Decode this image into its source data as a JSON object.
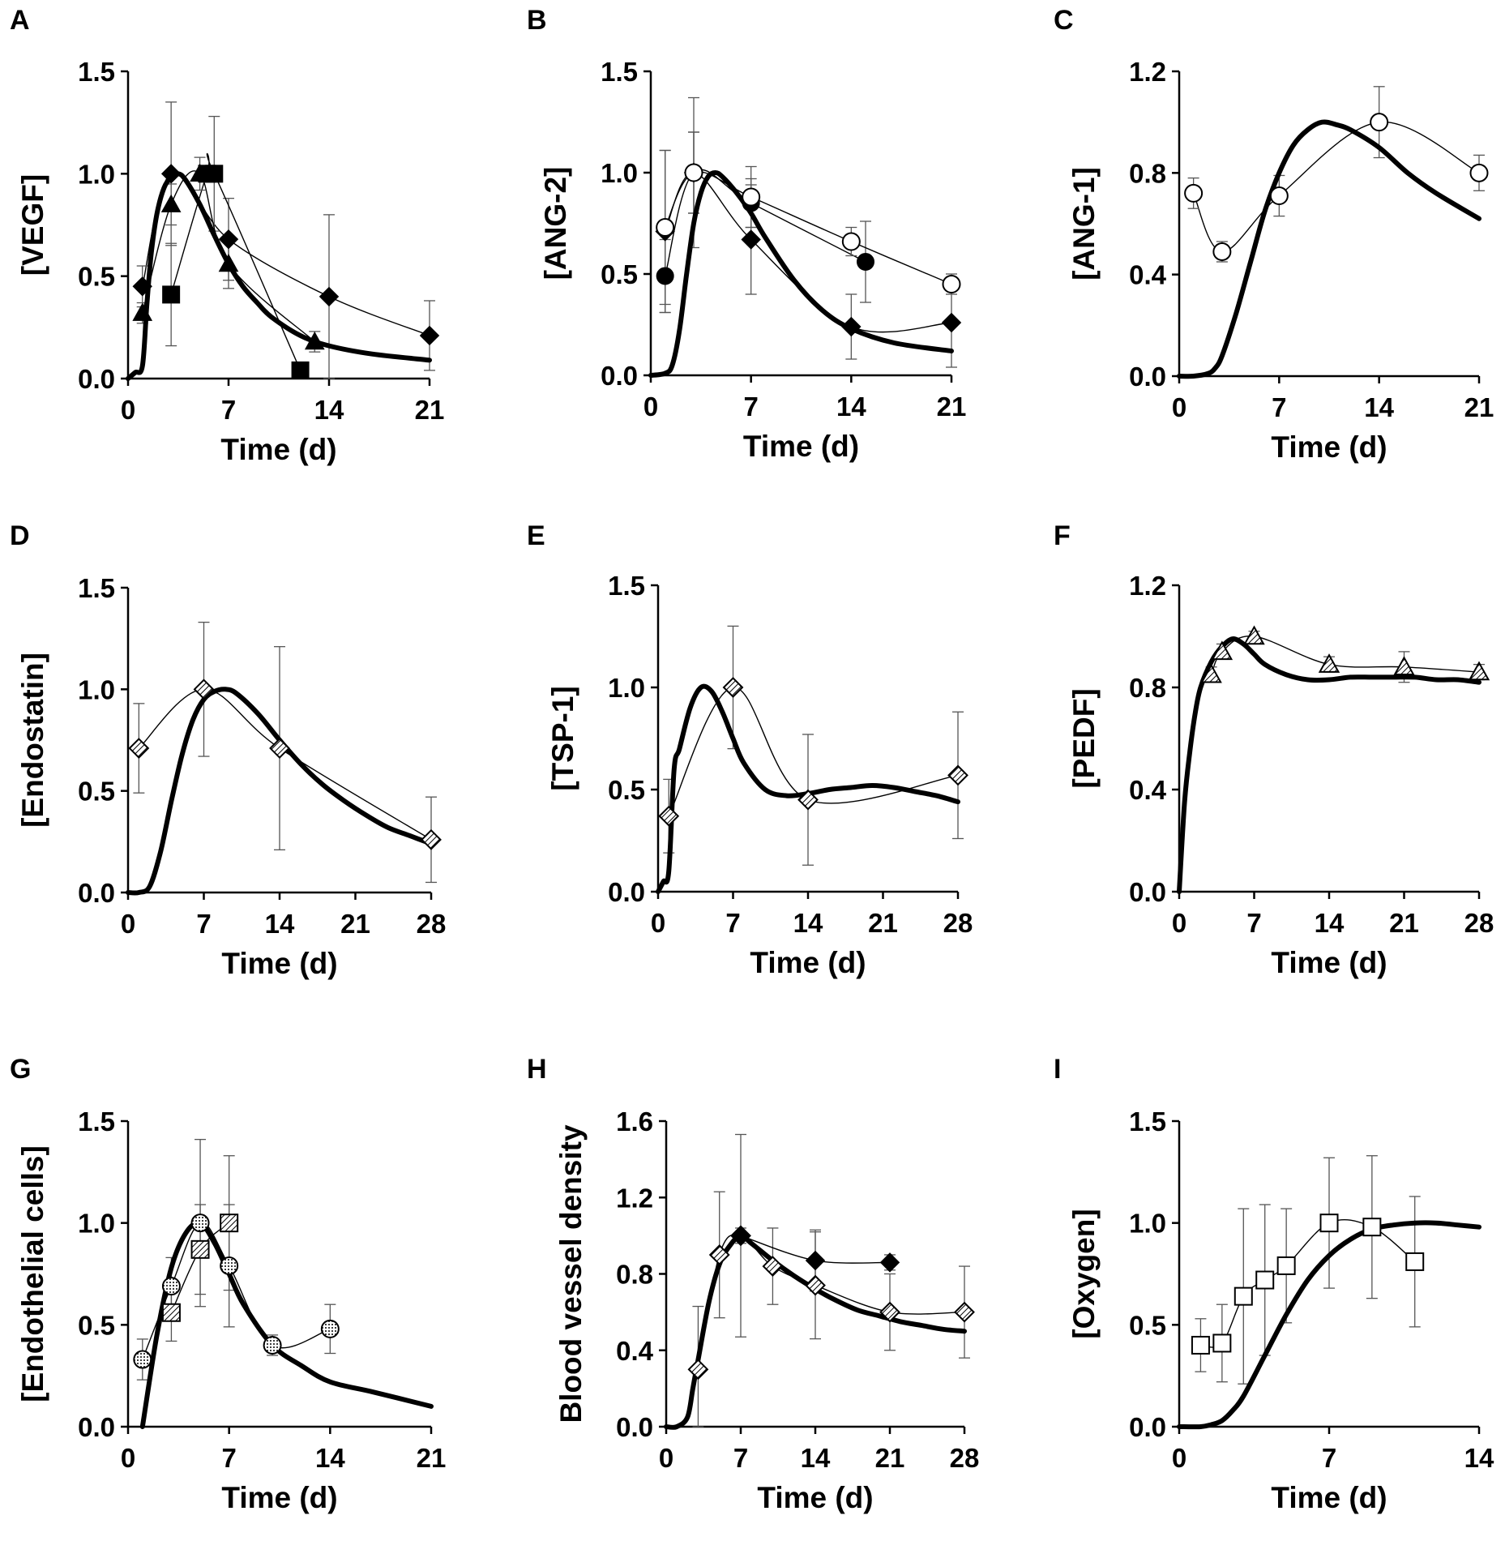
{
  "figure": {
    "panels_layout": "3x3 grid",
    "colors": {
      "ink": "#000000",
      "error_bar": "#555555",
      "background": "#ffffff"
    }
  },
  "chart_data": [
    {
      "id": "A",
      "type": "line",
      "letter": "A",
      "xlabel": "Time (d)",
      "ylabel": "[VEGF]",
      "xlim": [
        0,
        21
      ],
      "ylim": [
        0,
        1.5
      ],
      "xticks": [
        0,
        7,
        14,
        21
      ],
      "yticks": [
        "0.0",
        "0.5",
        "1.0",
        "1.5"
      ],
      "model": {
        "name": "model",
        "x": [
          0,
          0.5,
          1,
          1.3,
          1.6,
          2,
          2.5,
          3,
          3.5,
          4,
          5,
          6,
          7,
          8,
          9,
          10,
          12,
          14,
          17,
          21
        ],
        "y": [
          0,
          0.03,
          0.06,
          0.35,
          0.6,
          0.8,
          0.93,
          0.98,
          1.0,
          0.97,
          0.85,
          0.7,
          0.56,
          0.45,
          0.37,
          0.3,
          0.21,
          0.16,
          0.12,
          0.09
        ]
      },
      "series": [
        {
          "name": "diamond",
          "marker": "diamond",
          "fill": "black",
          "x": [
            1,
            3,
            7,
            14,
            21
          ],
          "y": [
            0.45,
            1.0,
            0.68,
            0.4,
            0.21
          ],
          "err": [
            0.1,
            0.35,
            0.2,
            0.4,
            0.17
          ]
        },
        {
          "name": "square",
          "marker": "square",
          "fill": "black",
          "x": [
            3,
            5.5,
            6,
            12
          ],
          "y": [
            0.41,
            1.0,
            1.0,
            0.04
          ],
          "err": [
            0.25,
            0.0,
            0.28,
            0.0
          ]
        },
        {
          "name": "triangle",
          "marker": "triangle",
          "fill": "black",
          "x": [
            1,
            3,
            5,
            7,
            13
          ],
          "y": [
            0.32,
            0.85,
            1.0,
            0.56,
            0.18
          ],
          "err": [
            0.05,
            0.1,
            0.08,
            0.12,
            0.05
          ]
        }
      ]
    },
    {
      "id": "B",
      "type": "line",
      "letter": "B",
      "xlabel": "Time (d)",
      "ylabel": "[ANG-2]",
      "xlim": [
        0,
        21
      ],
      "ylim": [
        0,
        1.5
      ],
      "xticks": [
        0,
        7,
        14,
        21
      ],
      "yticks": [
        "0.0",
        "0.5",
        "1.0",
        "1.5"
      ],
      "model": {
        "name": "model",
        "x": [
          0,
          1,
          1.5,
          2,
          2.5,
          3,
          3.5,
          4,
          4.5,
          5,
          6,
          7,
          8,
          10,
          12,
          14,
          17,
          21
        ],
        "y": [
          0,
          0.01,
          0.05,
          0.22,
          0.5,
          0.75,
          0.9,
          0.98,
          1.0,
          0.98,
          0.9,
          0.8,
          0.68,
          0.47,
          0.32,
          0.23,
          0.16,
          0.12
        ]
      },
      "series": [
        {
          "name": "filled-diamond",
          "marker": "diamond",
          "fill": "black",
          "x": [
            1,
            3,
            7,
            14,
            21
          ],
          "y": [
            0.71,
            1.0,
            0.67,
            0.24,
            0.26
          ],
          "err": [
            0.4,
            0.2,
            0.27,
            0.16,
            0.22
          ]
        },
        {
          "name": "filled-circle",
          "marker": "circle",
          "fill": "black",
          "x": [
            1,
            3,
            7,
            15
          ],
          "y": [
            0.49,
            1.0,
            0.85,
            0.56
          ],
          "err": [
            0.18,
            0.2,
            0.12,
            0.2
          ]
        },
        {
          "name": "open-circle",
          "marker": "circle",
          "fill": "white",
          "x": [
            1,
            3,
            7,
            14,
            21
          ],
          "y": [
            0.73,
            1.0,
            0.88,
            0.66,
            0.45
          ],
          "err": [
            0.38,
            0.37,
            0.15,
            0.07,
            0.05
          ]
        }
      ]
    },
    {
      "id": "C",
      "type": "line",
      "letter": "C",
      "xlabel": "Time (d)",
      "ylabel": "[ANG-1]",
      "xlim": [
        0,
        21
      ],
      "ylim": [
        0,
        1.2
      ],
      "xticks": [
        0,
        7,
        14,
        21
      ],
      "yticks": [
        "0.0",
        "0.4",
        "0.8",
        "1.2"
      ],
      "model": {
        "name": "model",
        "x": [
          0,
          1,
          2,
          2.5,
          3,
          4,
          5,
          6,
          7,
          8,
          9,
          10,
          11,
          12,
          14,
          16,
          18,
          21
        ],
        "y": [
          0,
          0.0,
          0.01,
          0.03,
          0.08,
          0.25,
          0.45,
          0.65,
          0.8,
          0.91,
          0.97,
          1.0,
          0.99,
          0.97,
          0.9,
          0.8,
          0.72,
          0.62
        ]
      },
      "series": [
        {
          "name": "open-circle",
          "marker": "circle",
          "fill": "white",
          "x": [
            1,
            3,
            7,
            14,
            21
          ],
          "y": [
            0.72,
            0.49,
            0.71,
            1.0,
            0.8
          ],
          "err": [
            0.06,
            0.04,
            0.08,
            0.14,
            0.07
          ]
        }
      ]
    },
    {
      "id": "D",
      "type": "line",
      "letter": "D",
      "xlabel": "Time (d)",
      "ylabel": "[Endostatin]",
      "xlim": [
        0,
        28
      ],
      "ylim": [
        0,
        1.5
      ],
      "xticks": [
        0,
        7,
        14,
        21,
        28
      ],
      "yticks": [
        "0.0",
        "0.5",
        "1.0",
        "1.5"
      ],
      "model": {
        "name": "model",
        "x": [
          0,
          1,
          2,
          3,
          4,
          5,
          6,
          7,
          8,
          9,
          10,
          12,
          14,
          16,
          18,
          20,
          22,
          24,
          26,
          28
        ],
        "y": [
          0,
          0.0,
          0.03,
          0.2,
          0.45,
          0.68,
          0.85,
          0.95,
          0.99,
          1.0,
          0.98,
          0.88,
          0.75,
          0.63,
          0.53,
          0.45,
          0.38,
          0.32,
          0.28,
          0.24
        ]
      },
      "series": [
        {
          "name": "hatched-diamond",
          "marker": "diamond",
          "fill": "hatch",
          "x": [
            1,
            7,
            14,
            28
          ],
          "y": [
            0.71,
            1.0,
            0.71,
            0.26
          ],
          "err": [
            0.22,
            0.33,
            0.5,
            0.21
          ]
        }
      ]
    },
    {
      "id": "E",
      "type": "line",
      "letter": "E",
      "xlabel": "Time (d)",
      "ylabel": "[TSP-1]",
      "xlim": [
        0,
        28
      ],
      "ylim": [
        0,
        1.5
      ],
      "xticks": [
        0,
        7,
        14,
        21,
        28
      ],
      "yticks": [
        "0.0",
        "0.5",
        "1.0",
        "1.5"
      ],
      "model": {
        "name": "model",
        "x": [
          0,
          0.5,
          1,
          1.5,
          2,
          3,
          4,
          5,
          6,
          7,
          8,
          10,
          12,
          14,
          16,
          18,
          20,
          22,
          24,
          26,
          28
        ],
        "y": [
          0,
          0.05,
          0.1,
          0.6,
          0.7,
          0.9,
          1.0,
          0.98,
          0.88,
          0.75,
          0.63,
          0.5,
          0.47,
          0.48,
          0.5,
          0.51,
          0.52,
          0.51,
          0.49,
          0.47,
          0.44
        ]
      },
      "series": [
        {
          "name": "hatched-diamond",
          "marker": "diamond",
          "fill": "hatch",
          "x": [
            1,
            7,
            14,
            28
          ],
          "y": [
            0.37,
            1.0,
            0.45,
            0.57
          ],
          "err": [
            0.18,
            0.3,
            0.32,
            0.31
          ]
        }
      ]
    },
    {
      "id": "F",
      "type": "line",
      "letter": "F",
      "xlabel": "Time (d)",
      "ylabel": "[PEDF]",
      "xlim": [
        0,
        28
      ],
      "ylim": [
        0,
        1.2
      ],
      "xticks": [
        0,
        7,
        14,
        21,
        28
      ],
      "yticks": [
        "0.0",
        "0.4",
        "0.8",
        "1.2"
      ],
      "model": {
        "name": "model",
        "x": [
          0,
          0.5,
          1,
          1.5,
          2,
          3,
          4,
          5,
          6,
          7,
          8,
          10,
          12,
          14,
          16,
          18,
          20,
          22,
          24,
          26,
          28
        ],
        "y": [
          0,
          0.35,
          0.55,
          0.7,
          0.8,
          0.9,
          0.96,
          0.99,
          0.97,
          0.93,
          0.89,
          0.85,
          0.83,
          0.83,
          0.84,
          0.84,
          0.84,
          0.84,
          0.83,
          0.83,
          0.82
        ]
      },
      "series": [
        {
          "name": "hatched-triangle",
          "marker": "triangle",
          "fill": "hatch",
          "x": [
            3,
            4,
            7,
            14,
            21,
            28
          ],
          "y": [
            0.85,
            0.94,
            1.0,
            0.89,
            0.88,
            0.86
          ],
          "err": [
            0.03,
            0.03,
            0.02,
            0.03,
            0.06,
            0.03
          ]
        }
      ]
    },
    {
      "id": "G",
      "type": "line",
      "letter": "G",
      "xlabel": "Time (d)",
      "ylabel": "[Endothelial cells]",
      "xlim": [
        0,
        21
      ],
      "ylim": [
        0,
        1.5
      ],
      "xticks": [
        0,
        7,
        14,
        21
      ],
      "yticks": [
        "0.0",
        "0.5",
        "1.0",
        "1.5"
      ],
      "model": {
        "name": "model",
        "x": [
          1,
          2,
          3,
          4,
          5,
          6,
          7,
          8,
          10,
          12,
          14,
          17,
          21
        ],
        "y": [
          0,
          0.45,
          0.78,
          0.95,
          1.0,
          0.9,
          0.75,
          0.6,
          0.4,
          0.3,
          0.22,
          0.17,
          0.1
        ]
      },
      "series": [
        {
          "name": "dotted-circle",
          "marker": "circle",
          "fill": "dotted",
          "x": [
            1,
            3,
            5,
            7,
            10,
            14
          ],
          "y": [
            0.33,
            0.69,
            1.0,
            0.79,
            0.4,
            0.48
          ],
          "err": [
            0.1,
            0.14,
            0.41,
            0.3,
            0.05,
            0.12
          ]
        },
        {
          "name": "hatched-square",
          "marker": "square",
          "fill": "hatch",
          "x": [
            3,
            5,
            7
          ],
          "y": [
            0.56,
            0.87,
            1.0
          ],
          "err": [
            0.14,
            0.22,
            0.33
          ]
        }
      ]
    },
    {
      "id": "H",
      "type": "line",
      "letter": "H",
      "xlabel": "Time (d)",
      "ylabel": "Blood vessel density",
      "xlim": [
        0,
        28
      ],
      "ylim": [
        0,
        1.6
      ],
      "xticks": [
        0,
        7,
        14,
        21,
        28
      ],
      "yticks": [
        "0.0",
        "0.4",
        "0.8",
        "1.2",
        "1.6"
      ],
      "model": {
        "name": "model",
        "x": [
          0,
          1,
          2,
          2.5,
          3,
          4,
          5,
          6,
          7,
          8,
          10,
          12,
          14,
          16,
          18,
          20,
          22,
          24,
          26,
          28
        ],
        "y": [
          0,
          0.0,
          0.05,
          0.2,
          0.35,
          0.65,
          0.85,
          0.95,
          1.0,
          0.96,
          0.87,
          0.79,
          0.72,
          0.66,
          0.61,
          0.58,
          0.55,
          0.53,
          0.51,
          0.5
        ]
      },
      "series": [
        {
          "name": "hatched-diamond",
          "marker": "diamond",
          "fill": "hatch",
          "x": [
            3,
            5,
            7,
            10,
            14,
            21,
            28
          ],
          "y": [
            0.3,
            0.9,
            1.0,
            0.84,
            0.74,
            0.6,
            0.6
          ],
          "err": [
            0.33,
            0.33,
            0.53,
            0.2,
            0.28,
            0.2,
            0.24
          ]
        },
        {
          "name": "filled-diamond",
          "marker": "diamond",
          "fill": "black",
          "x": [
            7,
            14,
            21
          ],
          "y": [
            1.0,
            0.87,
            0.86
          ],
          "err": [
            0.04,
            0.16,
            0.04
          ]
        }
      ]
    },
    {
      "id": "I",
      "type": "line",
      "letter": "I",
      "xlabel": "Time (d)",
      "ylabel": "[Oxygen]",
      "xlim": [
        0,
        14
      ],
      "ylim": [
        0,
        1.5
      ],
      "xticks": [
        0,
        7,
        14
      ],
      "yticks": [
        "0.0",
        "0.5",
        "1.0",
        "1.5"
      ],
      "model": {
        "name": "model",
        "x": [
          0,
          1,
          1.5,
          2,
          2.5,
          3,
          4,
          5,
          6,
          7,
          8,
          9,
          10,
          11,
          12,
          13,
          14
        ],
        "y": [
          0,
          0.0,
          0.01,
          0.03,
          0.08,
          0.15,
          0.35,
          0.55,
          0.72,
          0.84,
          0.92,
          0.97,
          0.99,
          1.0,
          1.0,
          0.99,
          0.98
        ]
      },
      "series": [
        {
          "name": "open-square",
          "marker": "square",
          "fill": "white",
          "x": [
            1,
            2,
            3,
            4,
            5,
            7,
            9,
            11
          ],
          "y": [
            0.4,
            0.41,
            0.64,
            0.72,
            0.79,
            1.0,
            0.98,
            0.81
          ],
          "err": [
            0.13,
            0.19,
            0.43,
            0.37,
            0.28,
            0.32,
            0.35,
            0.32
          ]
        }
      ]
    }
  ]
}
